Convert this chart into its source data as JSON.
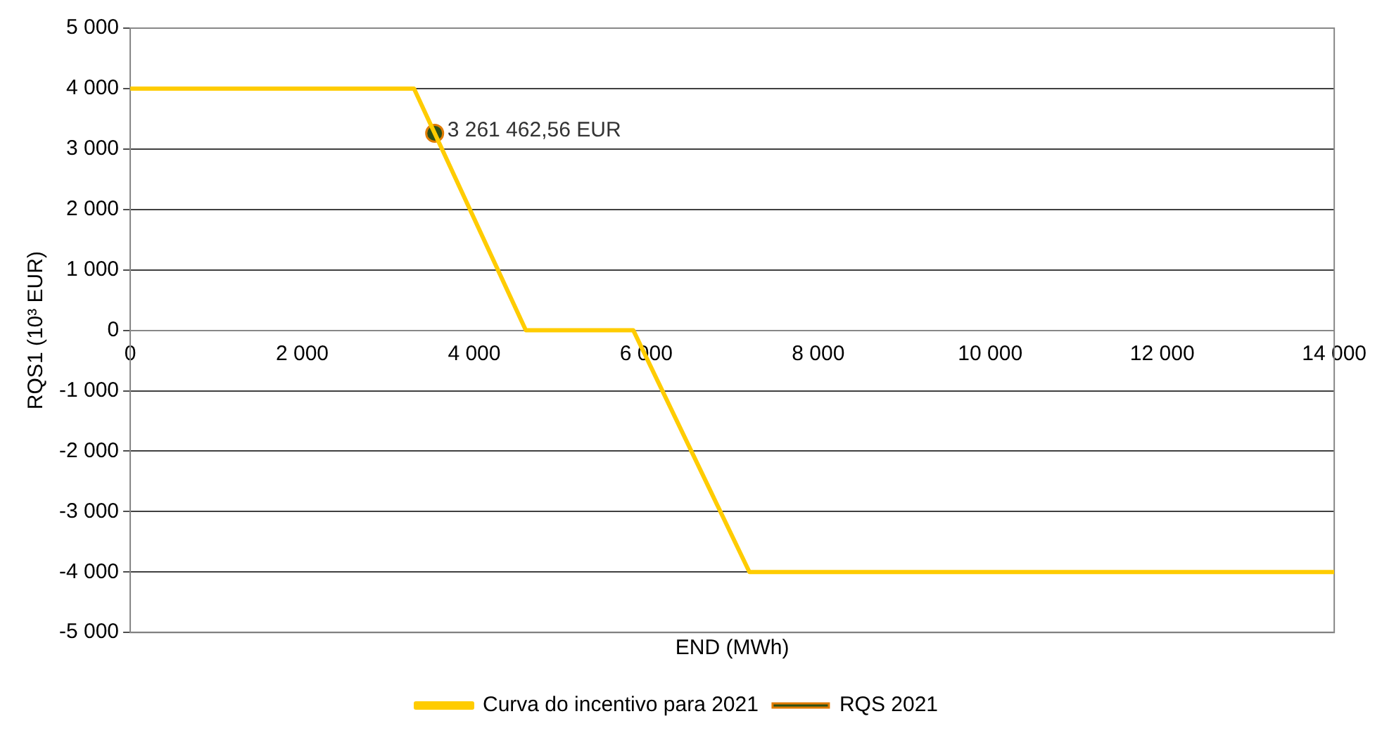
{
  "chart_data": {
    "type": "line",
    "xlabel": "END (MWh)",
    "ylabel": "RQS1 (10³ EUR)",
    "series": [
      {
        "name": "Curva do incentivo para 2021",
        "color": "#ffcc00",
        "x": [
          0,
          3300,
          4600,
          5850,
          7200,
          14000
        ],
        "values": [
          4000,
          4000,
          0,
          0,
          -4000,
          -4000
        ]
      },
      {
        "name": "RQS 2021",
        "color": "#2d5016",
        "type": "scatter",
        "marker": "circle",
        "x": [
          3540
        ],
        "values": [
          3261.46
        ]
      }
    ],
    "annotations": [
      {
        "text": "3 261 462,56 EUR",
        "x": 3540,
        "y": 3261.46
      }
    ],
    "xlim": [
      0,
      14000
    ],
    "xticks": [
      0,
      {
        "value": 2000,
        "label": "2 000"
      },
      {
        "value": 4000,
        "label": "4 000"
      },
      {
        "value": 6000,
        "label": "6 000"
      },
      {
        "value": 8000,
        "label": "8 000"
      },
      {
        "value": 10000,
        "label": "10 000"
      },
      {
        "value": 12000,
        "label": "12 000"
      },
      {
        "value": 14000,
        "label": "14 000"
      }
    ],
    "ylim": [
      -5000,
      5000
    ],
    "yticks": [
      {
        "value": -5000,
        "label": "-5 000"
      },
      {
        "value": -4000,
        "label": "-4 000"
      },
      {
        "value": -3000,
        "label": "-3 000"
      },
      {
        "value": -2000,
        "label": "-2 000"
      },
      {
        "value": -1000,
        "label": "-1 000"
      },
      0,
      {
        "value": 1000,
        "label": "1 000"
      },
      {
        "value": 2000,
        "label": "2 000"
      },
      {
        "value": 3000,
        "label": "3 000"
      },
      {
        "value": 4000,
        "label": "4 000"
      },
      {
        "value": 5000,
        "label": "5 000"
      }
    ],
    "grid": "y",
    "legend": "bottom",
    "marker": "none",
    "line_style": "solid"
  }
}
